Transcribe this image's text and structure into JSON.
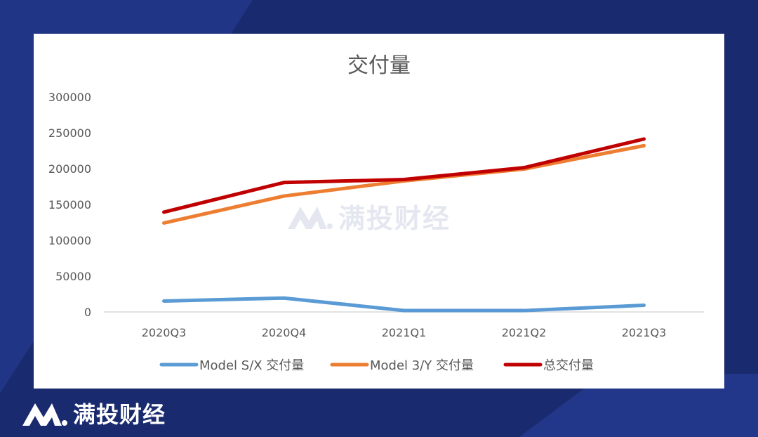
{
  "brand": {
    "name": "满投财经"
  },
  "watermark": {
    "name": "满投财经"
  },
  "colors": {
    "background": "#1a2a6e",
    "sx": "#5b9bd5",
    "three_y": "#ed7d31",
    "total": "#c00000"
  },
  "chart_data": {
    "type": "line",
    "title": "交付量",
    "categories": [
      "2020Q3",
      "2020Q4",
      "2021Q1",
      "2021Q2",
      "2021Q3"
    ],
    "ylim": [
      0,
      300000
    ],
    "yticks": [
      "0",
      "50000",
      "100000",
      "150000",
      "200000",
      "250000",
      "300000"
    ],
    "grid": false,
    "legend": "bottom",
    "series": [
      {
        "name": "Model S/X 交付量",
        "color": "#5b9bd5",
        "values": [
          15200,
          19400,
          2000,
          1900,
          9300
        ]
      },
      {
        "name": "Model 3/Y 交付量",
        "color": "#ed7d31",
        "values": [
          124100,
          161700,
          182800,
          199400,
          232000
        ]
      },
      {
        "name": "总交付量",
        "color": "#c00000",
        "values": [
          139300,
          180600,
          184800,
          201300,
          241300
        ]
      }
    ]
  }
}
